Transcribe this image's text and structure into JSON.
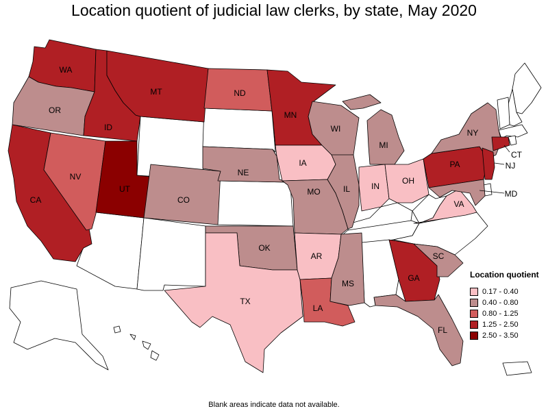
{
  "title": "Location quotient of judicial law clerks, by state, May 2020",
  "footnote": "Blank areas indicate data not available.",
  "legend": {
    "title": "Location quotient",
    "items": [
      {
        "label": "0.17 - 0.40",
        "color": "#f9bfc4"
      },
      {
        "label": "0.40 - 0.80",
        "color": "#bd8d8d"
      },
      {
        "label": "0.80 - 1.25",
        "color": "#d15c5c"
      },
      {
        "label": "1.25 - 2.50",
        "color": "#b01f24"
      },
      {
        "label": "2.50 - 3.50",
        "color": "#8b0000"
      }
    ]
  },
  "states": [
    {
      "abbr": "WA",
      "bin": 3
    },
    {
      "abbr": "OR",
      "bin": 1
    },
    {
      "abbr": "CA",
      "bin": 3
    },
    {
      "abbr": "ID",
      "bin": 3
    },
    {
      "abbr": "NV",
      "bin": 2
    },
    {
      "abbr": "MT",
      "bin": 3
    },
    {
      "abbr": "UT",
      "bin": 4
    },
    {
      "abbr": "CO",
      "bin": 1
    },
    {
      "abbr": "ND",
      "bin": 2
    },
    {
      "abbr": "NE",
      "bin": 1
    },
    {
      "abbr": "MN",
      "bin": 3
    },
    {
      "abbr": "IA",
      "bin": 0
    },
    {
      "abbr": "MO",
      "bin": 1
    },
    {
      "abbr": "OK",
      "bin": 1
    },
    {
      "abbr": "TX",
      "bin": 0
    },
    {
      "abbr": "AR",
      "bin": 0
    },
    {
      "abbr": "LA",
      "bin": 2
    },
    {
      "abbr": "WI",
      "bin": 1
    },
    {
      "abbr": "IL",
      "bin": 1
    },
    {
      "abbr": "MS",
      "bin": 1
    },
    {
      "abbr": "MI",
      "bin": 1
    },
    {
      "abbr": "IN",
      "bin": 0
    },
    {
      "abbr": "OH",
      "bin": 0
    },
    {
      "abbr": "GA",
      "bin": 3
    },
    {
      "abbr": "FL",
      "bin": 1
    },
    {
      "abbr": "SC",
      "bin": 1
    },
    {
      "abbr": "VA",
      "bin": 0
    },
    {
      "abbr": "PA",
      "bin": 3
    },
    {
      "abbr": "NY",
      "bin": 1
    },
    {
      "abbr": "NJ",
      "bin": 3
    },
    {
      "abbr": "MD",
      "bin": 1
    },
    {
      "abbr": "CT",
      "bin": 3
    }
  ]
}
